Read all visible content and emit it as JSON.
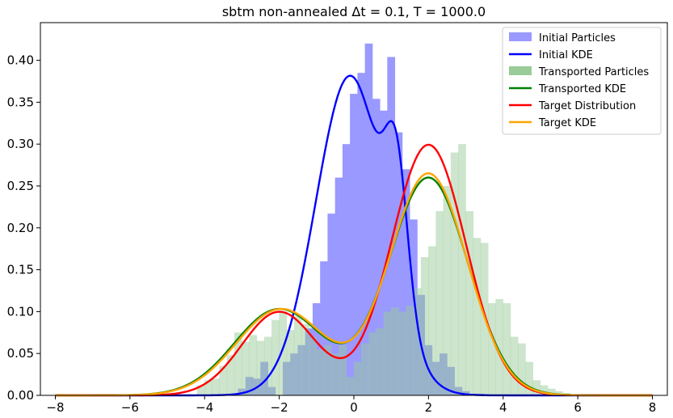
{
  "chart_data": {
    "type": "bar",
    "title": "sbtm non-annealed Δt = 0.1, T = 1000.0",
    "xlabel": "",
    "ylabel": "",
    "xlim": [
      -8.4,
      8.4
    ],
    "ylim": [
      0,
      0.445
    ],
    "x_ticks": [
      -8,
      -6,
      -4,
      -2,
      0,
      2,
      4,
      6,
      8
    ],
    "x_tick_labels": [
      "−8",
      "−6",
      "−4",
      "−2",
      "0",
      "2",
      "4",
      "6",
      "8"
    ],
    "y_ticks": [
      0.0,
      0.05,
      0.1,
      0.15,
      0.2,
      0.25,
      0.3,
      0.35,
      0.4
    ],
    "y_tick_labels": [
      "0.00",
      "0.05",
      "0.10",
      "0.15",
      "0.20",
      "0.25",
      "0.30",
      "0.35",
      "0.40"
    ],
    "grid": false,
    "legend_position": "top-right",
    "colors": {
      "initial_particles": "#9999ff",
      "initial_kde": "#0000ff",
      "transported_particles": "#99cc99",
      "transported_kde": "#008000",
      "target_distribution": "#ff0000",
      "target_kde": "#ffa500"
    },
    "histograms": [
      {
        "name": "Initial Particles",
        "color": "#9999ff",
        "bin_width": 0.21,
        "bins": [
          [
            -3.0,
            0.008
          ],
          [
            -2.8,
            0.022
          ],
          [
            -2.6,
            0.02
          ],
          [
            -2.4,
            0.04
          ],
          [
            -2.2,
            0.01
          ],
          [
            -1.8,
            0.04
          ],
          [
            -1.6,
            0.05
          ],
          [
            -1.4,
            0.06
          ],
          [
            -1.2,
            0.08
          ],
          [
            -1.0,
            0.11
          ],
          [
            -0.8,
            0.16
          ],
          [
            -0.6,
            0.217
          ],
          [
            -0.4,
            0.26
          ],
          [
            -0.2,
            0.3
          ],
          [
            0.0,
            0.36
          ],
          [
            0.2,
            0.385
          ],
          [
            0.4,
            0.42
          ],
          [
            0.6,
            0.354
          ],
          [
            0.8,
            0.34
          ],
          [
            1.0,
            0.404
          ],
          [
            1.2,
            0.314
          ],
          [
            1.4,
            0.27
          ],
          [
            1.6,
            0.21
          ],
          [
            1.8,
            0.12
          ],
          [
            2.0,
            0.06
          ],
          [
            2.2,
            0.04
          ],
          [
            2.4,
            0.05
          ],
          [
            2.6,
            0.034
          ],
          [
            2.8,
            0.01
          ],
          [
            3.0,
            0.005
          ],
          [
            3.2,
            0.002
          ],
          [
            3.4,
            0.002
          ],
          [
            3.6,
            0.001
          ]
        ]
      },
      {
        "name": "Transported Particles",
        "color": "#99cc99",
        "bin_width": 0.21,
        "bins": [
          [
            -4.1,
            0.012
          ],
          [
            -3.9,
            0.018
          ],
          [
            -3.7,
            0.02
          ],
          [
            -3.5,
            0.035
          ],
          [
            -3.3,
            0.048
          ],
          [
            -3.1,
            0.075
          ],
          [
            -2.9,
            0.064
          ],
          [
            -2.7,
            0.072
          ],
          [
            -2.5,
            0.065
          ],
          [
            -2.3,
            0.07
          ],
          [
            -2.1,
            0.09
          ],
          [
            -1.9,
            0.1
          ],
          [
            -1.7,
            0.078
          ],
          [
            -1.5,
            0.095
          ],
          [
            -1.3,
            0.085
          ],
          [
            -1.1,
            0.07
          ],
          [
            -0.9,
            0.055
          ],
          [
            -0.7,
            0.06
          ],
          [
            -0.5,
            0.05
          ],
          [
            -0.3,
            0.06
          ],
          [
            -0.1,
            0.022
          ],
          [
            0.1,
            0.04
          ],
          [
            0.3,
            0.062
          ],
          [
            0.5,
            0.075
          ],
          [
            0.7,
            0.08
          ],
          [
            0.9,
            0.1
          ],
          [
            1.1,
            0.105
          ],
          [
            1.3,
            0.1
          ],
          [
            1.5,
            0.107
          ],
          [
            1.7,
            0.128
          ],
          [
            1.9,
            0.165
          ],
          [
            2.1,
            0.178
          ],
          [
            2.3,
            0.22
          ],
          [
            2.5,
            0.25
          ],
          [
            2.7,
            0.29
          ],
          [
            2.9,
            0.3
          ],
          [
            3.1,
            0.22
          ],
          [
            3.3,
            0.188
          ],
          [
            3.5,
            0.182
          ],
          [
            3.7,
            0.11
          ],
          [
            3.9,
            0.115
          ],
          [
            4.1,
            0.11
          ],
          [
            4.3,
            0.07
          ],
          [
            4.5,
            0.062
          ],
          [
            4.7,
            0.04
          ],
          [
            4.9,
            0.018
          ],
          [
            5.1,
            0.012
          ],
          [
            5.3,
            0.008
          ],
          [
            5.5,
            0.005
          ],
          [
            5.7,
            0.003
          ]
        ]
      }
    ],
    "series": [
      {
        "name": "Initial KDE",
        "color": "#0000ff",
        "components": [
          {
            "weight": 0.88,
            "mean": -0.1,
            "sd": 0.92
          },
          {
            "weight": 0.12,
            "mean": 1.15,
            "sd": 0.3
          }
        ]
      },
      {
        "name": "Transported KDE",
        "color": "#008000",
        "components": [
          {
            "weight": 0.31,
            "mean": -2.0,
            "sd": 1.2
          },
          {
            "weight": 0.69,
            "mean": 2.0,
            "sd": 1.06
          }
        ]
      },
      {
        "name": "Target Distribution",
        "color": "#ff0000",
        "components": [
          {
            "weight": 0.25,
            "mean": -2.0,
            "sd": 1.0
          },
          {
            "weight": 0.75,
            "mean": 2.0,
            "sd": 1.0
          }
        ]
      },
      {
        "name": "Target KDE",
        "color": "#ffa500",
        "components": [
          {
            "weight": 0.31,
            "mean": -1.95,
            "sd": 1.2
          },
          {
            "weight": 0.69,
            "mean": 2.0,
            "sd": 1.04
          }
        ]
      }
    ],
    "x_range": [
      -8,
      8
    ],
    "legend_entries": [
      {
        "label": "Initial Particles",
        "kind": "patch",
        "color": "#9999ff"
      },
      {
        "label": "Initial KDE",
        "kind": "line",
        "color": "#0000ff"
      },
      {
        "label": "Transported Particles",
        "kind": "patch",
        "color": "#99cc99"
      },
      {
        "label": "Transported KDE",
        "kind": "line",
        "color": "#008000"
      },
      {
        "label": "Target Distribution",
        "kind": "line",
        "color": "#ff0000"
      },
      {
        "label": "Target KDE",
        "kind": "line",
        "color": "#ffa500"
      }
    ]
  }
}
